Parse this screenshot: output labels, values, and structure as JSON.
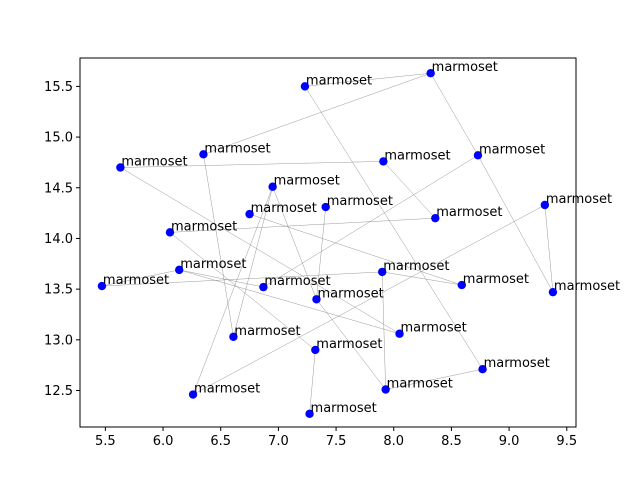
{
  "chart_data": {
    "type": "scatter",
    "title": "",
    "xlabel": "",
    "ylabel": "",
    "xlim": [
      5.28,
      9.58
    ],
    "ylim": [
      12.14,
      15.78
    ],
    "xticks": [
      "5.5",
      "6.0",
      "6.5",
      "7.0",
      "7.5",
      "8.0",
      "8.5",
      "9.0",
      "9.5"
    ],
    "yticks": [
      "12.5",
      "13.0",
      "13.5",
      "14.0",
      "14.5",
      "15.0",
      "15.5"
    ],
    "grid": false,
    "point_color": "#0000ff",
    "edge_color": "#808080",
    "points": [
      {
        "x": 8.32,
        "y": 15.63,
        "label": "marmoset"
      },
      {
        "x": 7.23,
        "y": 15.5,
        "label": "marmoset"
      },
      {
        "x": 6.35,
        "y": 14.83,
        "label": "marmoset"
      },
      {
        "x": 8.73,
        "y": 14.82,
        "label": "marmoset"
      },
      {
        "x": 7.91,
        "y": 14.76,
        "label": "marmoset"
      },
      {
        "x": 5.63,
        "y": 14.7,
        "label": "marmoset"
      },
      {
        "x": 6.95,
        "y": 14.51,
        "label": "marmoset"
      },
      {
        "x": 9.31,
        "y": 14.33,
        "label": "marmoset"
      },
      {
        "x": 7.41,
        "y": 14.31,
        "label": "marmoset"
      },
      {
        "x": 6.75,
        "y": 14.24,
        "label": "marmoset"
      },
      {
        "x": 8.36,
        "y": 14.2,
        "label": "marmoset"
      },
      {
        "x": 6.06,
        "y": 14.06,
        "label": "marmoset"
      },
      {
        "x": 6.14,
        "y": 13.69,
        "label": "marmoset"
      },
      {
        "x": 7.9,
        "y": 13.67,
        "label": "marmoset"
      },
      {
        "x": 5.47,
        "y": 13.53,
        "label": "marmoset"
      },
      {
        "x": 8.59,
        "y": 13.54,
        "label": "marmoset"
      },
      {
        "x": 6.87,
        "y": 13.52,
        "label": "marmoset"
      },
      {
        "x": 9.38,
        "y": 13.47,
        "label": "marmoset"
      },
      {
        "x": 7.33,
        "y": 13.4,
        "label": "marmoset"
      },
      {
        "x": 8.05,
        "y": 13.06,
        "label": "marmoset"
      },
      {
        "x": 6.61,
        "y": 13.03,
        "label": "marmoset"
      },
      {
        "x": 7.32,
        "y": 12.9,
        "label": "marmoset"
      },
      {
        "x": 8.77,
        "y": 12.71,
        "label": "marmoset"
      },
      {
        "x": 7.93,
        "y": 12.51,
        "label": "marmoset"
      },
      {
        "x": 6.26,
        "y": 12.46,
        "label": "marmoset"
      },
      {
        "x": 7.27,
        "y": 12.27,
        "label": "marmoset"
      }
    ],
    "edges": [
      [
        0,
        2
      ],
      [
        0,
        3
      ],
      [
        3,
        17
      ],
      [
        17,
        7
      ],
      [
        7,
        24
      ],
      [
        1,
        0
      ],
      [
        1,
        22
      ],
      [
        2,
        20
      ],
      [
        4,
        5
      ],
      [
        4,
        10
      ],
      [
        5,
        19
      ],
      [
        6,
        24
      ],
      [
        8,
        18
      ],
      [
        9,
        15
      ],
      [
        10,
        11
      ],
      [
        11,
        21
      ],
      [
        12,
        14
      ],
      [
        12,
        19
      ],
      [
        13,
        15
      ],
      [
        13,
        23
      ],
      [
        14,
        13
      ],
      [
        16,
        12
      ],
      [
        16,
        3
      ],
      [
        18,
        6
      ],
      [
        18,
        23
      ],
      [
        21,
        25
      ],
      [
        22,
        23
      ],
      [
        6,
        20
      ]
    ]
  }
}
